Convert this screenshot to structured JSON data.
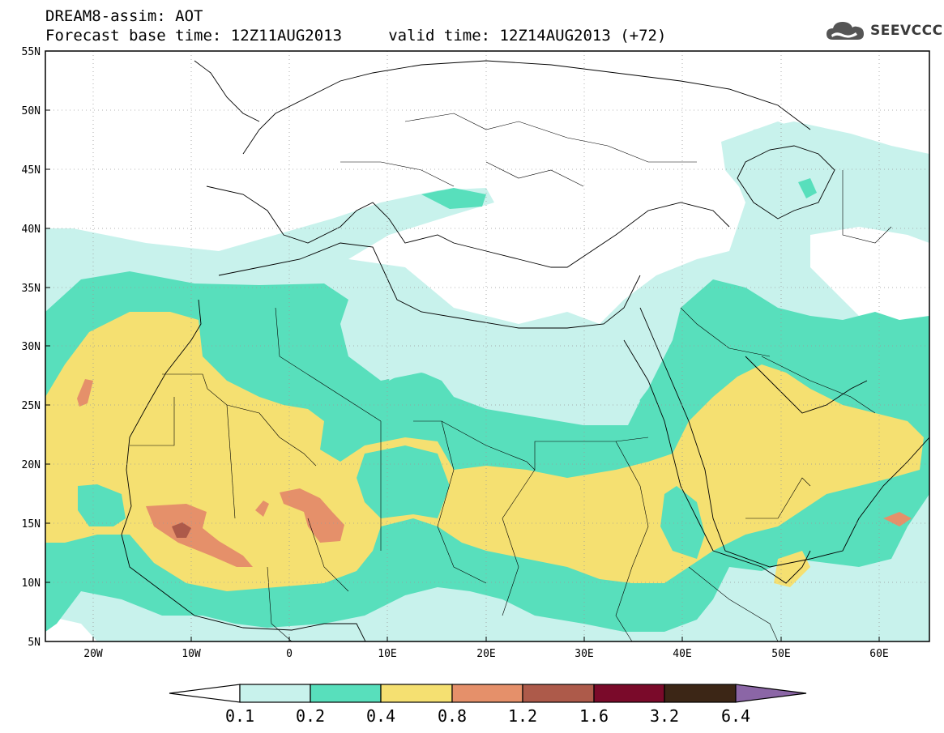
{
  "title": {
    "line1": "DREAM8-assim: AOT",
    "line2": "Forecast base time: 12Z11AUG2013     valid time: 12Z14AUG2013 (+72)"
  },
  "logo": {
    "text": "SEEVCCC",
    "icon": "cloud-icon"
  },
  "map": {
    "lat_labels": [
      "55N",
      "50N",
      "45N",
      "40N",
      "35N",
      "30N",
      "25N",
      "20N",
      "15N",
      "10N",
      "5N"
    ],
    "lon_labels": [
      "20W",
      "10W",
      "0",
      "10E",
      "20E",
      "30E",
      "40E",
      "50E",
      "60E"
    ],
    "lat_range": [
      5,
      55
    ],
    "lon_range": [
      -25,
      65
    ],
    "grid": "dotted",
    "field": "AOT"
  },
  "colorbar": {
    "ticks": [
      "0.1",
      "0.2",
      "0.4",
      "0.8",
      "1.2",
      "1.6",
      "3.2",
      "6.4"
    ],
    "colors": [
      "#ffffff",
      "#c8f2ec",
      "#58dfbc",
      "#f5e071",
      "#e5906a",
      "#ad5a4a",
      "#7a0a2a",
      "#3c2616",
      "#8b66a6"
    ]
  }
}
